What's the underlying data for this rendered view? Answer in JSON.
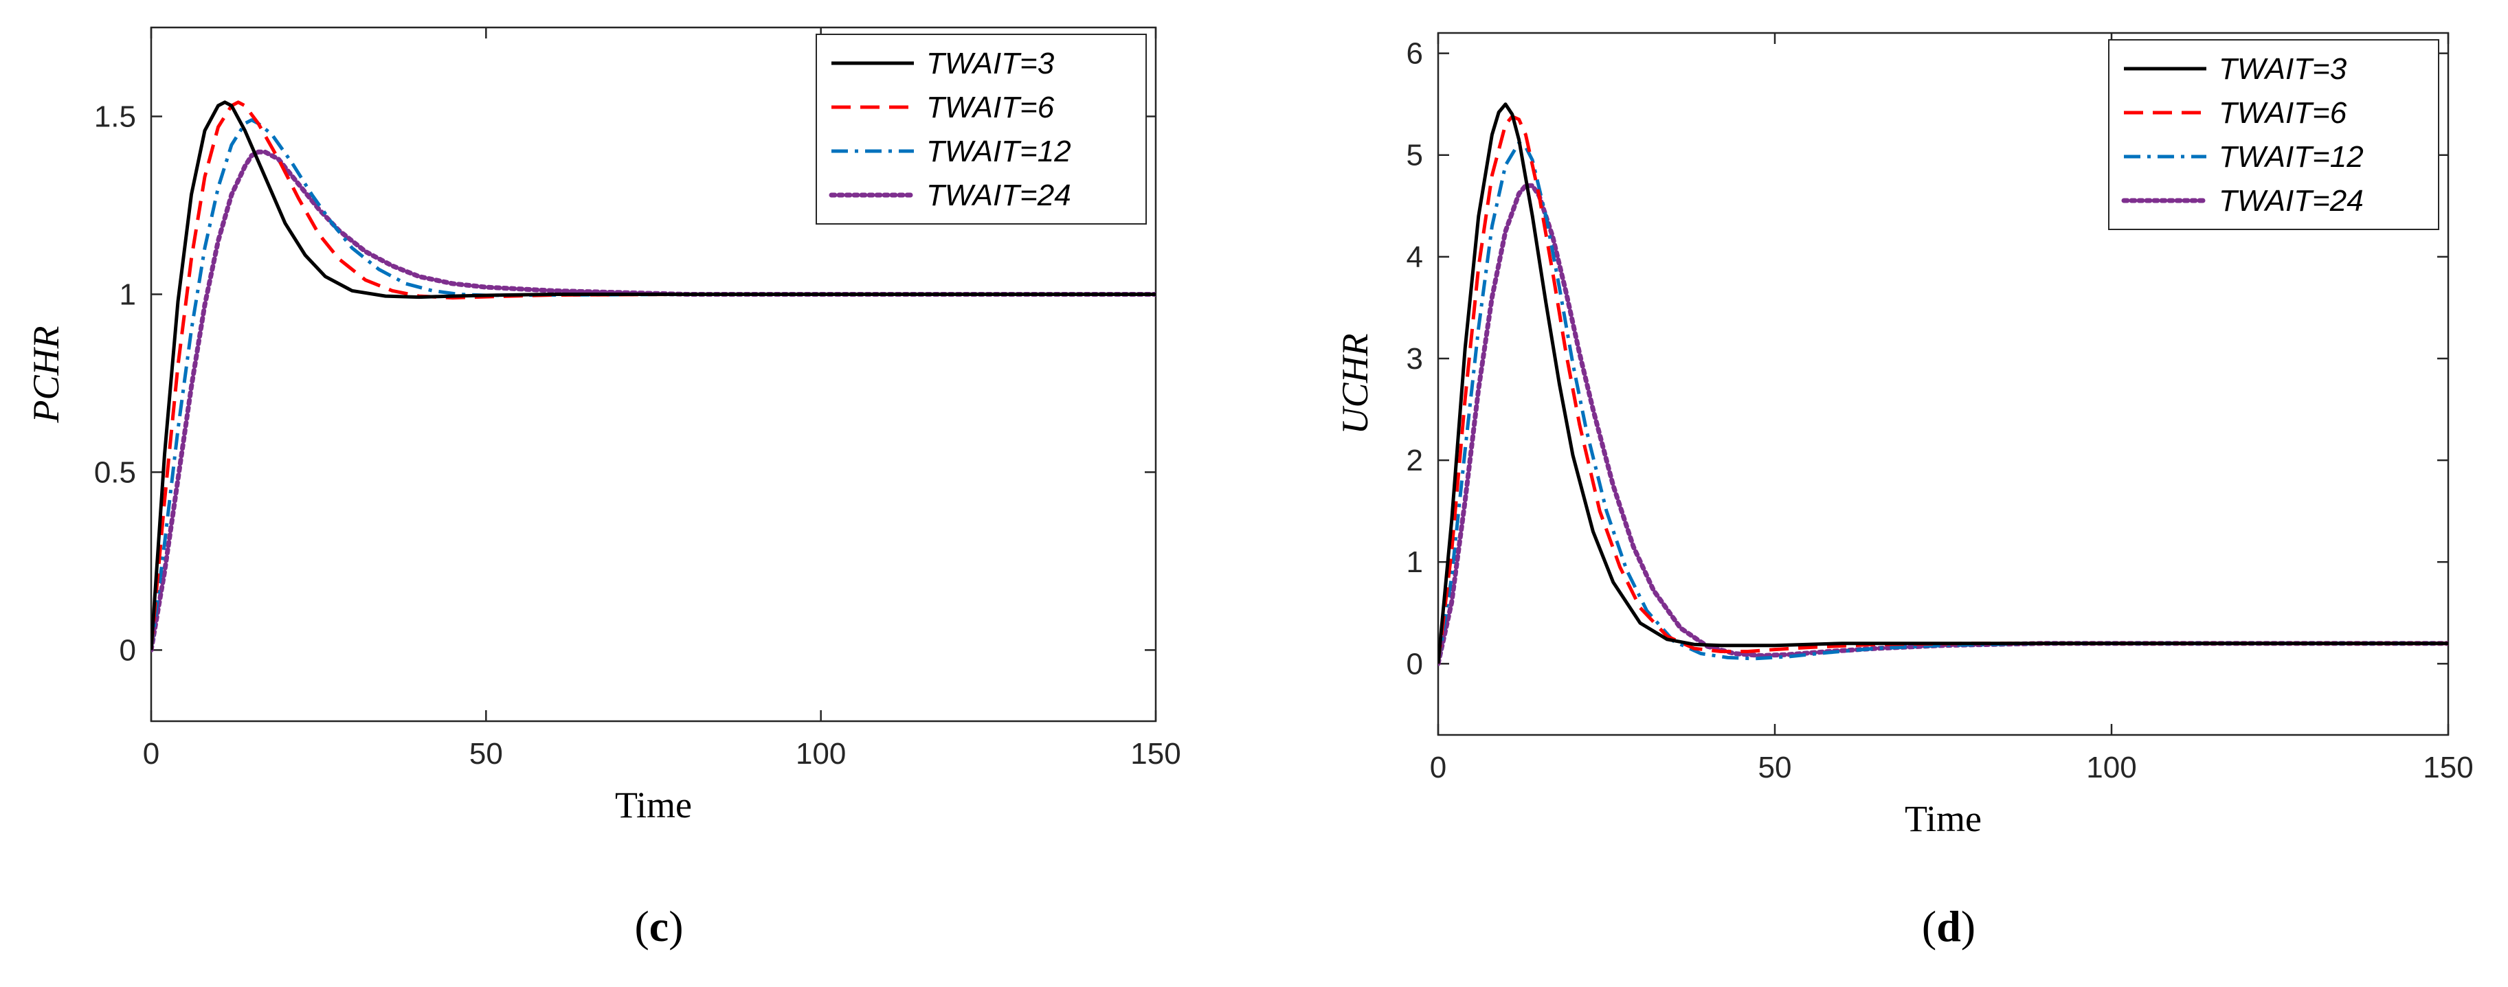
{
  "chart_data": [
    {
      "type": "line",
      "panel": "c",
      "panel_label_open": "(",
      "panel_letter": "c",
      "panel_label_close": ")",
      "xlabel": "Time",
      "ylabel": "PCHR",
      "xlim": [
        0,
        150
      ],
      "ylim": [
        -0.2,
        1.75
      ],
      "xticks": [
        0,
        50,
        100,
        150
      ],
      "xtick_labels": [
        "0",
        "50",
        "100",
        "150"
      ],
      "yticks": [
        0,
        0.5,
        1,
        1.5
      ],
      "ytick_labels": [
        "0",
        "0.5",
        "1",
        "1.5"
      ],
      "grid": false,
      "legend": "top-right",
      "series": [
        {
          "name": "TWAIT=3",
          "color": "#000000",
          "dash": "solid",
          "x": [
            0,
            2,
            4,
            6,
            8,
            10,
            11,
            12,
            14,
            17,
            20,
            23,
            26,
            30,
            35,
            40,
            45,
            50,
            60,
            80,
            100,
            150
          ],
          "y": [
            0,
            0.55,
            0.98,
            1.28,
            1.46,
            1.53,
            1.54,
            1.53,
            1.46,
            1.33,
            1.2,
            1.11,
            1.05,
            1.01,
            0.995,
            0.992,
            0.995,
            0.997,
            1.0,
            1.0,
            1.0,
            1.0
          ]
        },
        {
          "name": "TWAIT=6",
          "color": "#ff0000",
          "dash": "dashed",
          "x": [
            0,
            2,
            4,
            6,
            8,
            10,
            12,
            13,
            14,
            16,
            19,
            22,
            25,
            28,
            32,
            36,
            40,
            45,
            50,
            60,
            80,
            150
          ],
          "y": [
            0,
            0.42,
            0.8,
            1.1,
            1.33,
            1.47,
            1.53,
            1.54,
            1.53,
            1.48,
            1.38,
            1.27,
            1.17,
            1.1,
            1.04,
            1.01,
            0.995,
            0.99,
            0.993,
            0.998,
            1.0,
            1.0
          ]
        },
        {
          "name": "TWAIT=12",
          "color": "#0072bd",
          "dash": "dashdot",
          "x": [
            0,
            2,
            4,
            6,
            8,
            10,
            12,
            14,
            15,
            16,
            18,
            21,
            24,
            27,
            30,
            34,
            38,
            42,
            46,
            50,
            60,
            80,
            150
          ],
          "y": [
            0,
            0.3,
            0.62,
            0.9,
            1.13,
            1.3,
            1.42,
            1.48,
            1.49,
            1.48,
            1.45,
            1.37,
            1.28,
            1.2,
            1.13,
            1.07,
            1.03,
            1.01,
            1.0,
            0.997,
            0.998,
            1.0,
            1.0
          ]
        },
        {
          "name": "TWAIT=24",
          "color": "#7e2f8e",
          "dash": "dotted",
          "x": [
            0,
            2,
            4,
            6,
            8,
            10,
            12,
            14,
            15,
            16,
            17,
            19,
            22,
            25,
            28,
            32,
            36,
            40,
            45,
            50,
            60,
            80,
            100,
            150
          ],
          "y": [
            0,
            0.22,
            0.48,
            0.74,
            0.97,
            1.15,
            1.28,
            1.36,
            1.39,
            1.4,
            1.4,
            1.38,
            1.31,
            1.24,
            1.18,
            1.12,
            1.08,
            1.05,
            1.03,
            1.02,
            1.01,
            1.0,
            1.0,
            1.0
          ]
        }
      ]
    },
    {
      "type": "line",
      "panel": "d",
      "panel_label_open": "(",
      "panel_letter": "d",
      "panel_label_close": ")",
      "xlabel": "Time",
      "ylabel": "UCHR",
      "xlim": [
        0,
        150
      ],
      "ylim": [
        -0.7,
        6.2
      ],
      "xticks": [
        0,
        50,
        100,
        150
      ],
      "xtick_labels": [
        "0",
        "50",
        "100",
        "150"
      ],
      "yticks": [
        0,
        1,
        2,
        3,
        4,
        5,
        6
      ],
      "ytick_labels": [
        "0",
        "1",
        "2",
        "3",
        "4",
        "5",
        "6"
      ],
      "grid": false,
      "legend": "top-right",
      "series": [
        {
          "name": "TWAIT=3",
          "color": "#000000",
          "dash": "solid",
          "x": [
            0,
            2,
            4,
            6,
            8,
            9,
            10,
            11,
            12,
            14,
            16,
            18,
            20,
            23,
            26,
            30,
            34,
            38,
            42,
            46,
            50,
            60,
            80,
            150
          ],
          "y": [
            0,
            1.4,
            3.1,
            4.4,
            5.2,
            5.42,
            5.5,
            5.4,
            5.15,
            4.4,
            3.55,
            2.75,
            2.05,
            1.3,
            0.8,
            0.4,
            0.24,
            0.19,
            0.18,
            0.18,
            0.18,
            0.2,
            0.2,
            0.2
          ]
        },
        {
          "name": "TWAIT=6",
          "color": "#ff0000",
          "dash": "dashed",
          "x": [
            0,
            2,
            4,
            6,
            8,
            10,
            11,
            12,
            13,
            15,
            17,
            19,
            21,
            24,
            27,
            30,
            34,
            38,
            42,
            46,
            50,
            55,
            65,
            80,
            150
          ],
          "y": [
            0,
            1.1,
            2.6,
            3.9,
            4.8,
            5.3,
            5.38,
            5.35,
            5.2,
            4.6,
            3.85,
            3.05,
            2.35,
            1.5,
            0.95,
            0.55,
            0.27,
            0.15,
            0.12,
            0.12,
            0.14,
            0.16,
            0.19,
            0.2,
            0.2
          ]
        },
        {
          "name": "TWAIT=12",
          "color": "#0072bd",
          "dash": "dashdot",
          "x": [
            0,
            2,
            4,
            6,
            8,
            10,
            12,
            13,
            14,
            16,
            18,
            20,
            22,
            25,
            28,
            31,
            35,
            39,
            43,
            47,
            52,
            58,
            65,
            75,
            90,
            150
          ],
          "y": [
            0,
            0.85,
            2.1,
            3.3,
            4.3,
            4.9,
            5.12,
            5.08,
            4.95,
            4.4,
            3.7,
            2.95,
            2.3,
            1.5,
            0.92,
            0.52,
            0.22,
            0.1,
            0.06,
            0.05,
            0.07,
            0.11,
            0.15,
            0.18,
            0.2,
            0.2
          ]
        },
        {
          "name": "TWAIT=24",
          "color": "#7e2f8e",
          "dash": "dotted",
          "x": [
            0,
            2,
            4,
            6,
            8,
            10,
            12,
            13,
            14,
            15,
            17,
            19,
            21,
            23,
            26,
            29,
            32,
            36,
            40,
            44,
            48,
            52,
            58,
            65,
            75,
            90,
            150
          ],
          "y": [
            0,
            0.6,
            1.6,
            2.7,
            3.6,
            4.25,
            4.62,
            4.7,
            4.7,
            4.6,
            4.2,
            3.65,
            3.05,
            2.5,
            1.75,
            1.15,
            0.72,
            0.35,
            0.17,
            0.1,
            0.08,
            0.09,
            0.12,
            0.15,
            0.18,
            0.2,
            0.2
          ]
        }
      ]
    }
  ]
}
